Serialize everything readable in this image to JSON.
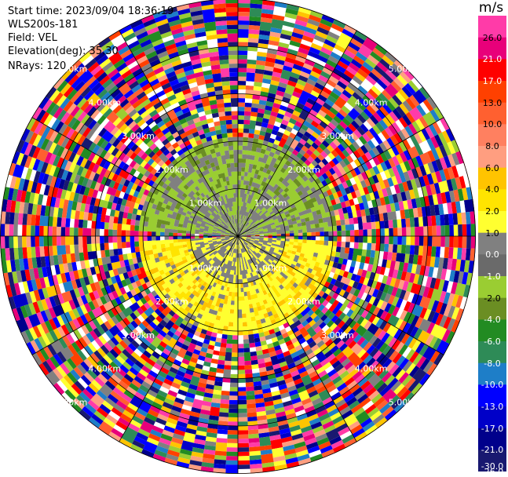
{
  "info": {
    "start_time": "Start time: 2023/09/04 18:36:19",
    "instrument": "WLS200s-181",
    "field": "Field: VEL",
    "elevation": "Elevation(deg): 35.30",
    "nrays": "NRays: 120"
  },
  "range_ring_labels": [
    "1.00km",
    "2.00km",
    "3.00km",
    "4.00km",
    "5.00km"
  ],
  "colorbar": {
    "unit": "m/s",
    "ticks": [
      "26.0",
      "21.0",
      "17.0",
      "13.0",
      "10.0",
      "8.0",
      "6.0",
      "4.0",
      "2.0",
      "1.0",
      "0.0",
      "-1.0",
      "-2.0",
      "-4.0",
      "-6.0",
      "-8.0",
      "-10.0",
      "-13.0",
      "-17.0",
      "-21.0",
      "-26.0",
      "-30.0"
    ],
    "colors": [
      "#ff3ba8",
      "#e8007a",
      "#ff0000",
      "#ff4000",
      "#ff6030",
      "#ff8060",
      "#ff9e80",
      "#ffc400",
      "#ffe400",
      "#ffff30",
      "#808080",
      "#6a6a6a",
      "#9acd32",
      "#6b8e23",
      "#228b22",
      "#2e8b57",
      "#1e7ec8",
      "#0000ff",
      "#0000c8",
      "#00008b",
      "#191970"
    ]
  }
}
